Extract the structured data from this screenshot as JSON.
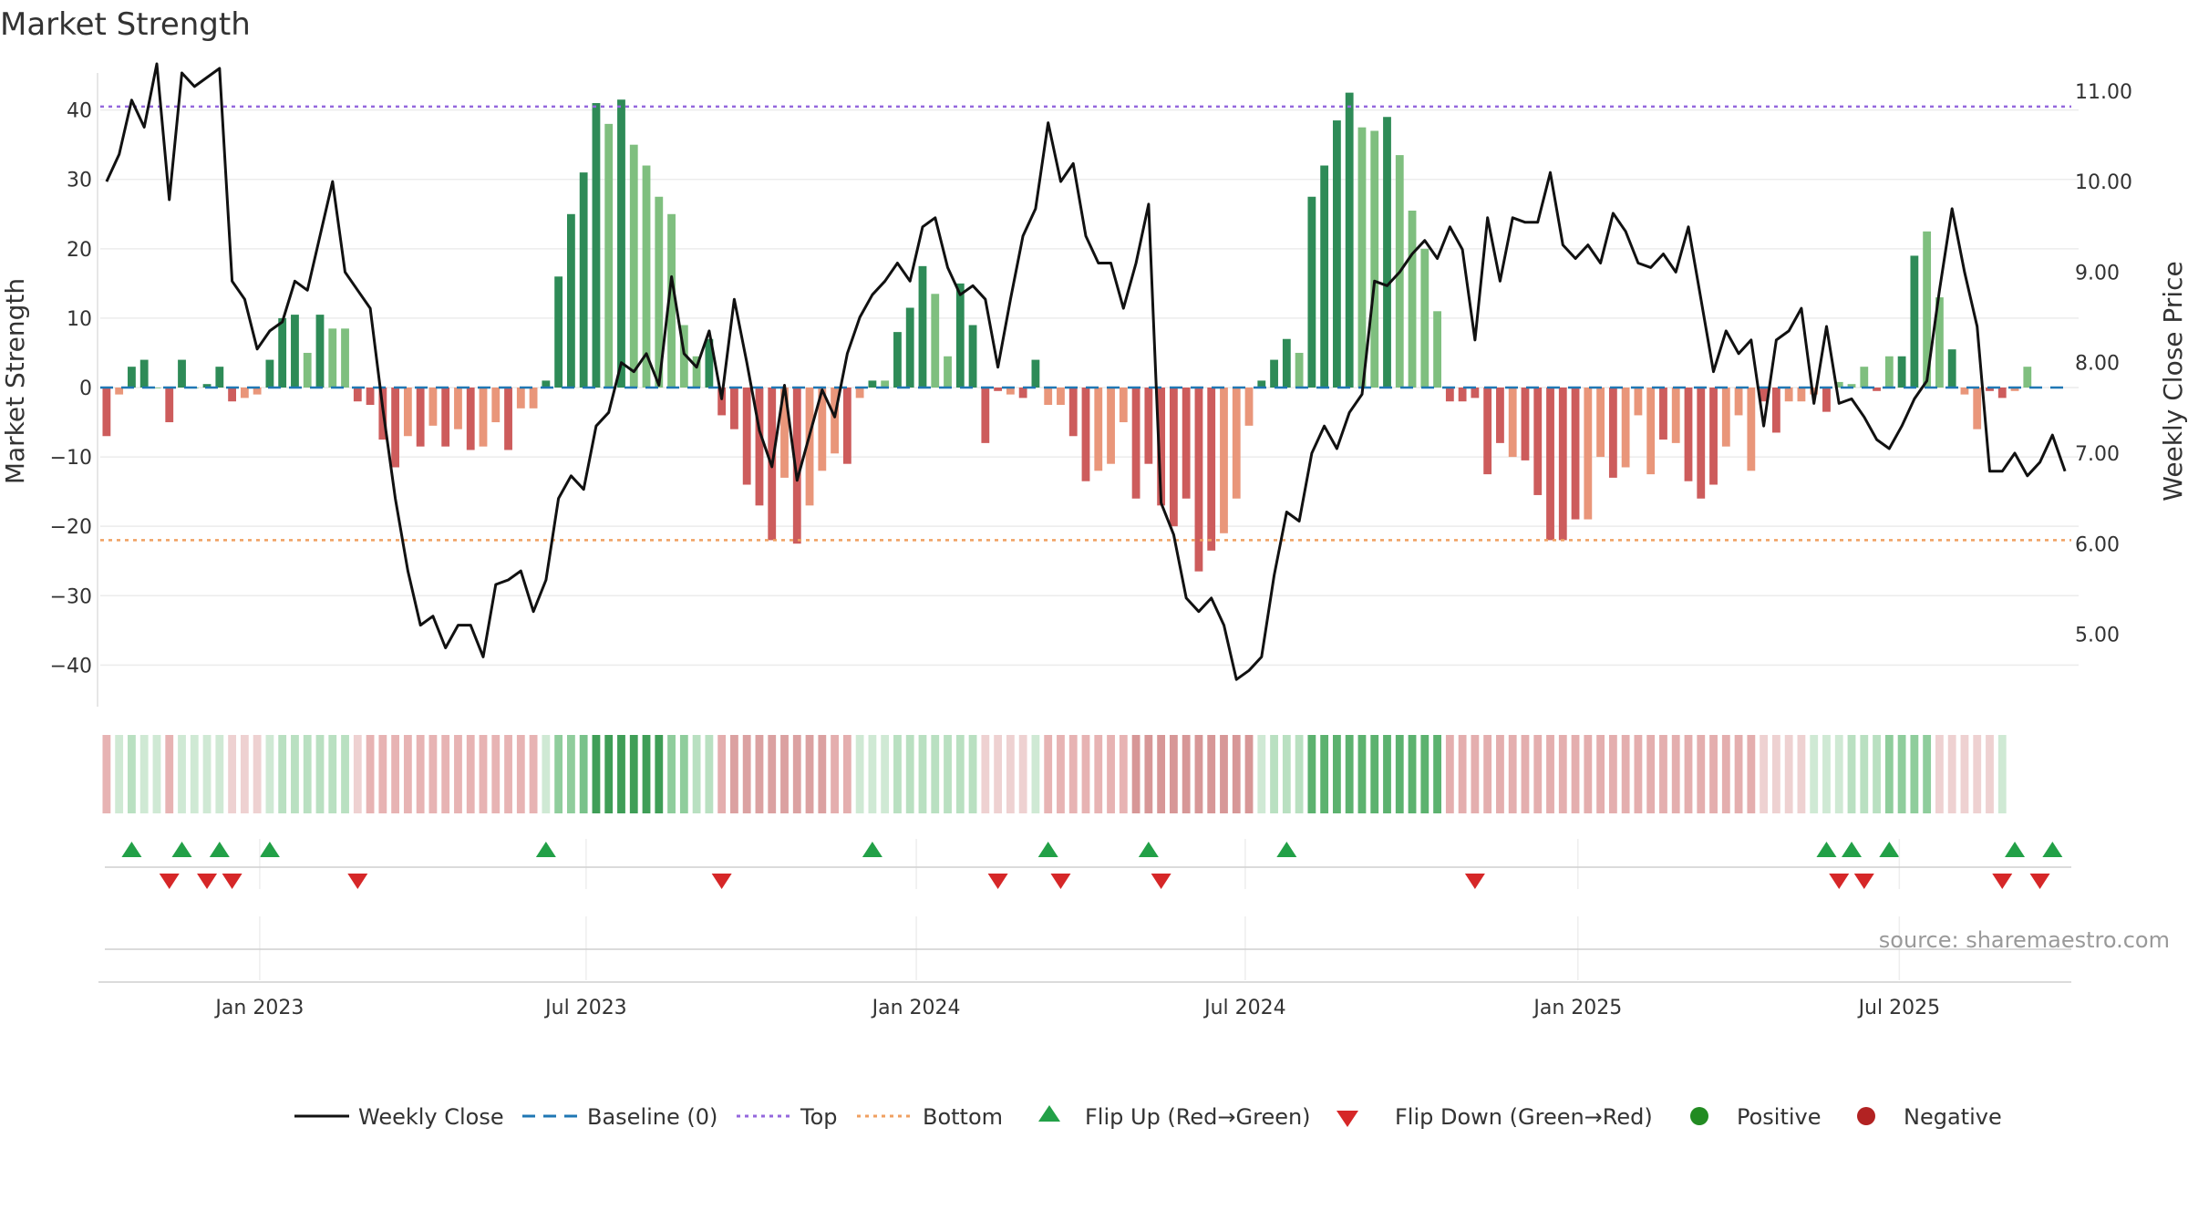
{
  "chart_data": {
    "type": "bar",
    "title": "Market Strength",
    "ylabel_left": "Market Strength",
    "ylabel_right": "Weekly Close Price",
    "ylim_left": [
      -46,
      46
    ],
    "ylim_right": [
      4.2,
      11.25
    ],
    "yticks_left": [
      40,
      30,
      20,
      10,
      0,
      -10,
      -20,
      -30,
      -40
    ],
    "yticks_left_labels": [
      "40",
      "30",
      "20",
      "10",
      "0",
      "−10",
      "−20",
      "−30",
      "−40"
    ],
    "yticks_right": [
      11,
      10,
      9,
      8,
      7,
      6,
      5
    ],
    "yticks_right_labels": [
      "11.00",
      "10.00",
      "9.00",
      "8.00",
      "7.00",
      "6.00",
      "5.00"
    ],
    "top_line": 40.5,
    "bottom_line": -22,
    "x_start": "2022-10-07",
    "week_count": 157,
    "x_tick_labels": [
      "Jan 2023",
      "Jul 2023",
      "Jan 2024",
      "Jul 2024",
      "Jan 2025",
      "Jul 2025"
    ],
    "x_tick_week_index": [
      12.7,
      38.7,
      65,
      91.2,
      117.7,
      143.3
    ],
    "strength_values": [
      -7,
      -1,
      3,
      4,
      0,
      -5,
      4,
      0,
      0.5,
      3,
      -2,
      -1.5,
      -1,
      4,
      10,
      10.5,
      5,
      10.5,
      8.5,
      8.5,
      -2,
      -2.5,
      -7.5,
      -11.5,
      -7,
      -8.5,
      -5.5,
      -8.5,
      -6,
      -9,
      -8.5,
      -5,
      -9,
      -3,
      -3,
      1,
      16,
      25,
      31,
      41,
      38,
      41.5,
      35,
      32,
      27.5,
      25,
      9,
      4.5,
      7,
      -4,
      -6,
      -14,
      -17,
      -22,
      -13,
      -22.5,
      -17,
      -12,
      -9.5,
      -11,
      -1.5,
      1,
      1,
      8,
      11.5,
      17.5,
      13.5,
      4.5,
      15,
      9,
      -8,
      -0.5,
      -1,
      -1.5,
      4,
      -2.5,
      -2.5,
      -7,
      -13.5,
      -12,
      -11,
      -5,
      -16,
      -11,
      -17,
      -20,
      -16,
      -26.5,
      -23.5,
      -21,
      -16,
      -5.5,
      1,
      4,
      7,
      5,
      27.5,
      32,
      38.5,
      42.5,
      37.5,
      37,
      39,
      33.5,
      25.5,
      20,
      11,
      -2,
      -2,
      -1.5,
      -12.5,
      -8,
      -10,
      -10.5,
      -15.5,
      -22,
      -22,
      -19,
      -19,
      -10,
      -13,
      -11.5,
      -4,
      -12.5,
      -7.5,
      -8,
      -13.5,
      -16,
      -14,
      -8.5,
      -4,
      -12,
      -2,
      -6.5,
      -2,
      -2,
      -1,
      -3.5,
      0.8,
      0.5,
      3,
      -0.5,
      4.5,
      4.5,
      19,
      22.5,
      13,
      5.5,
      -1,
      -6,
      -0.5,
      -1.5,
      -0.5,
      3
    ],
    "strength_light": [
      false,
      true,
      false,
      false,
      true,
      false,
      false,
      true,
      false,
      false,
      false,
      true,
      true,
      false,
      false,
      false,
      true,
      false,
      true,
      true,
      false,
      false,
      false,
      false,
      true,
      false,
      true,
      false,
      true,
      false,
      true,
      true,
      false,
      true,
      true,
      false,
      false,
      false,
      false,
      false,
      true,
      false,
      true,
      true,
      true,
      true,
      true,
      true,
      false,
      false,
      false,
      false,
      false,
      false,
      true,
      false,
      true,
      true,
      true,
      false,
      true,
      false,
      true,
      false,
      false,
      false,
      true,
      true,
      false,
      false,
      false,
      false,
      true,
      false,
      false,
      true,
      true,
      false,
      false,
      true,
      true,
      true,
      false,
      false,
      false,
      false,
      false,
      false,
      false,
      true,
      true,
      true,
      false,
      false,
      false,
      true,
      false,
      false,
      false,
      false,
      true,
      true,
      false,
      true,
      true,
      true,
      true,
      false,
      false,
      false,
      false,
      false,
      true,
      false,
      false,
      false,
      false,
      false,
      true,
      true,
      false,
      true,
      true,
      true,
      false,
      true,
      false,
      false,
      false,
      true,
      true,
      true,
      false,
      false,
      true,
      true,
      true,
      false,
      true,
      true,
      true,
      false,
      true,
      false,
      false,
      true,
      true,
      false,
      true,
      true,
      false,
      false,
      true,
      true,
      false
    ],
    "close_values": [
      10.0,
      10.3,
      10.9,
      10.6,
      11.3,
      9.8,
      11.2,
      11.05,
      11.15,
      11.25,
      8.9,
      8.7,
      8.15,
      8.35,
      8.45,
      8.9,
      8.8,
      9.4,
      10.0,
      9.0,
      8.8,
      8.6,
      7.5,
      6.5,
      5.7,
      5.1,
      5.2,
      4.85,
      5.1,
      5.1,
      4.75,
      5.55,
      5.6,
      5.7,
      5.25,
      5.6,
      6.5,
      6.75,
      6.6,
      7.3,
      7.45,
      8.0,
      7.9,
      8.1,
      7.75,
      8.95,
      8.1,
      7.95,
      8.35,
      7.6,
      8.7,
      8.0,
      7.25,
      6.85,
      7.75,
      6.7,
      7.2,
      7.7,
      7.4,
      8.1,
      8.5,
      8.75,
      8.9,
      9.1,
      8.9,
      9.5,
      9.6,
      9.05,
      8.75,
      8.85,
      8.7,
      7.95,
      8.7,
      9.4,
      9.7,
      10.65,
      10.0,
      10.2,
      9.4,
      9.1,
      9.1,
      8.6,
      9.1,
      9.75,
      6.45,
      6.1,
      5.4,
      5.25,
      5.4,
      5.1,
      4.5,
      4.6,
      4.75,
      5.65,
      6.35,
      6.25,
      7.0,
      7.3,
      7.05,
      7.45,
      7.65,
      8.9,
      8.85,
      9.0,
      9.2,
      9.35,
      9.15,
      9.5,
      9.25,
      8.25,
      9.6,
      8.9,
      9.6,
      9.55,
      9.55,
      10.1,
      9.3,
      9.15,
      9.3,
      9.1,
      9.65,
      9.45,
      9.1,
      9.05,
      9.2,
      9.0,
      9.5,
      8.7,
      7.9,
      8.35,
      8.1,
      8.25,
      7.3,
      8.25,
      8.35,
      8.6,
      7.55,
      8.4,
      7.55,
      7.6,
      7.4,
      7.15,
      7.05,
      7.3,
      7.6,
      7.8,
      8.8,
      9.7,
      9.0,
      8.4,
      6.8,
      6.8,
      7.0,
      6.75,
      6.9,
      7.2,
      6.8
    ],
    "zone_colors": [
      "#e7b3b3",
      "#cfe9d4",
      "#b9e0c1",
      "#cfe9d4",
      "#cfe9d4",
      "#e7b3b3",
      "#cfe9d4",
      "#cfe9d4",
      "#cfe9d4",
      "#cfe9d4",
      "#eed1d1",
      "#eed1d1",
      "#eed1d1",
      "#cfe9d4",
      "#b9e0c1",
      "#b9e0c1",
      "#b9e0c1",
      "#b9e0c1",
      "#b9e0c1",
      "#b9e0c1",
      "#eed1d1",
      "#e7b3b3",
      "#e7b3b3",
      "#e7b3b3",
      "#e7b3b3",
      "#e7b3b3",
      "#e7b3b3",
      "#e7b3b3",
      "#e7b3b3",
      "#e7b3b3",
      "#e7b3b3",
      "#e7b3b3",
      "#e7b3b3",
      "#e7b3b3",
      "#e7b3b3",
      "#cfe9d4",
      "#8fcd9c",
      "#8fcd9c",
      "#79c28a",
      "#3f9e57",
      "#3f9e57",
      "#3f9e57",
      "#3f9e57",
      "#3f9e57",
      "#3f9e57",
      "#8fcd9c",
      "#8fcd9c",
      "#b9e0c1",
      "#b9e0c1",
      "#e4aeae",
      "#dba1a1",
      "#dba1a1",
      "#dba1a1",
      "#dba1a1",
      "#dba1a1",
      "#dba1a1",
      "#dba1a1",
      "#dba1a1",
      "#e4aeae",
      "#e4aeae",
      "#cfe9d4",
      "#cfe9d4",
      "#cfe9d4",
      "#b9e0c1",
      "#b9e0c1",
      "#b9e0c1",
      "#b9e0c1",
      "#b9e0c1",
      "#b9e0c1",
      "#b9e0c1",
      "#eed1d1",
      "#eed1d1",
      "#eed1d1",
      "#eed1d1",
      "#cfe9d4",
      "#e7b3b3",
      "#e7b3b3",
      "#e7b3b3",
      "#e7b3b3",
      "#e7b3b3",
      "#e7b3b3",
      "#e7b3b3",
      "#d79797",
      "#d79797",
      "#d79797",
      "#d79797",
      "#d79797",
      "#d79797",
      "#d79797",
      "#d79797",
      "#d79797",
      "#d79797",
      "#cfe9d4",
      "#b9e0c1",
      "#b9e0c1",
      "#b9e0c1",
      "#5cb26f",
      "#5cb26f",
      "#5cb26f",
      "#5cb26f",
      "#5cb26f",
      "#5cb26f",
      "#5cb26f",
      "#5cb26f",
      "#5cb26f",
      "#5cb26f",
      "#5cb26f",
      "#e4aeae",
      "#e4aeae",
      "#e4aeae",
      "#e4aeae",
      "#e4aeae",
      "#e4aeae",
      "#e4aeae",
      "#e4aeae",
      "#e4aeae",
      "#e4aeae",
      "#e4aeae",
      "#e4aeae",
      "#e4aeae",
      "#e4aeae",
      "#e4aeae",
      "#e4aeae",
      "#e4aeae",
      "#e4aeae",
      "#e4aeae",
      "#e4aeae",
      "#e4aeae",
      "#e4aeae",
      "#e4aeae",
      "#e4aeae",
      "#e4aeae",
      "#eed1d1",
      "#eed1d1",
      "#eed1d1",
      "#eed1d1",
      "#cfe9d4",
      "#cfe9d4",
      "#cfe9d4",
      "#b9e0c1",
      "#b9e0c1",
      "#b9e0c1",
      "#8fcd9c",
      "#8fcd9c",
      "#8fcd9c",
      "#8fcd9c",
      "#eed1d1",
      "#eed1d1",
      "#eed1d1",
      "#eed1d1",
      "#eed1d1",
      "#cfe9d4"
    ],
    "flip_up_weeks": [
      2,
      6,
      9,
      13,
      35,
      61,
      75,
      83,
      94,
      137,
      139,
      142,
      152,
      155
    ],
    "flip_down_weeks": [
      5,
      8,
      10,
      20,
      49,
      71,
      76,
      84,
      109,
      138,
      140,
      151,
      154
    ],
    "legend": [
      "Weekly Close",
      "Baseline (0)",
      "Top",
      "Bottom",
      "Flip Up (Red→Green)",
      "Flip Down (Green→Red)",
      "Positive",
      "Negative"
    ],
    "source": "source: sharemaestro.com"
  },
  "colors": {
    "pos_dark": "#2e8b57",
    "pos_light": "#7fbf7f",
    "neg_dark": "#cd5c5c",
    "neg_light": "#e9967a",
    "close_line": "#111111",
    "baseline": "#1f77b4",
    "top_line": "#9467dd",
    "bottom_line": "#f0a060",
    "flip_up": "#22a047",
    "flip_down": "#d62728",
    "positive_dot": "#228b22",
    "negative_dot": "#b22222"
  }
}
